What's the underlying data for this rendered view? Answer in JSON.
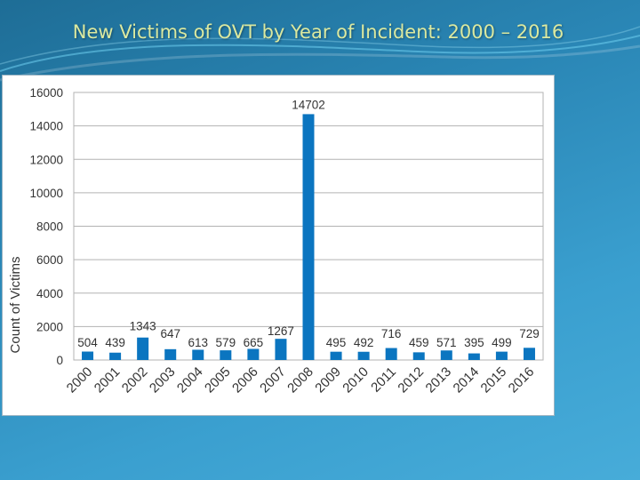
{
  "slide": {
    "title": "New Victims of OVT by Year of Incident: 2000 – 2016"
  },
  "chart_data": {
    "type": "bar",
    "title": "",
    "xlabel": "",
    "ylabel": "Count of Victims",
    "categories": [
      "2000",
      "2001",
      "2002",
      "2003",
      "2004",
      "2005",
      "2006",
      "2007",
      "2008",
      "2009",
      "2010",
      "2011",
      "2012",
      "2013",
      "2014",
      "2015",
      "2016"
    ],
    "values": [
      504,
      439,
      1343,
      647,
      613,
      579,
      665,
      1267,
      14702,
      495,
      492,
      716,
      459,
      571,
      395,
      499,
      729
    ],
    "ylim": [
      0,
      16000
    ],
    "yticks": [
      "0",
      "2000",
      "4000",
      "6000",
      "8000",
      "10000",
      "12000",
      "14000",
      "16000"
    ],
    "grid": true,
    "legend": "none",
    "bar_color": "#0b75c0",
    "grid_color": "#b3b3b3"
  }
}
